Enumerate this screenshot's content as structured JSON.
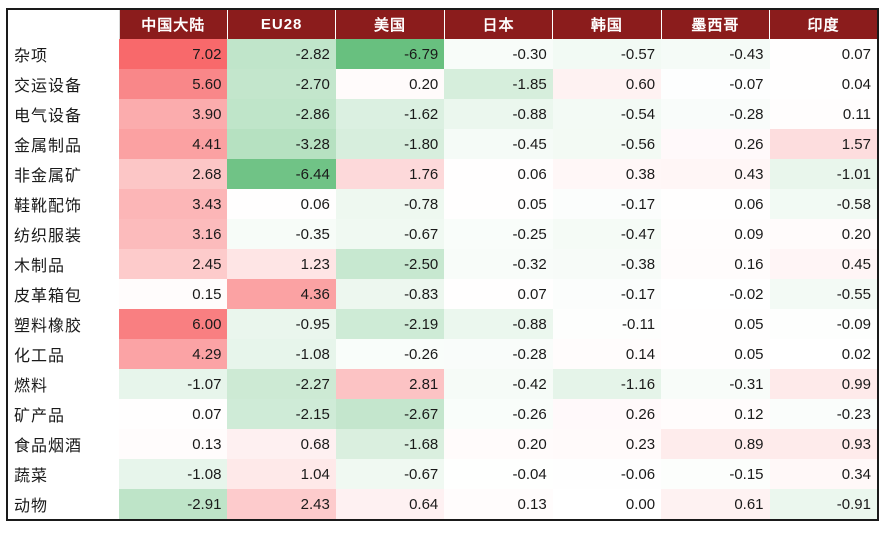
{
  "chart_data": {
    "type": "heatmap",
    "columns": [
      "中国大陆",
      "EU28",
      "美国",
      "日本",
      "韩国",
      "墨西哥",
      "印度"
    ],
    "rows": [
      "杂项",
      "交运设备",
      "电气设备",
      "金属制品",
      "非金属矿",
      "鞋靴配饰",
      "纺织服装",
      "木制品",
      "皮革箱包",
      "塑料橡胶",
      "化工品",
      "燃料",
      "矿产品",
      "食品烟酒",
      "蔬菜",
      "动物"
    ],
    "values": [
      [
        7.02,
        -2.82,
        -6.79,
        -0.3,
        -0.57,
        -0.43,
        0.07
      ],
      [
        5.6,
        -2.7,
        0.2,
        -1.85,
        0.6,
        -0.07,
        0.04
      ],
      [
        3.9,
        -2.86,
        -1.62,
        -0.88,
        -0.54,
        -0.28,
        0.11
      ],
      [
        4.41,
        -3.28,
        -1.8,
        -0.45,
        -0.56,
        0.26,
        1.57
      ],
      [
        2.68,
        -6.44,
        1.76,
        0.06,
        0.38,
        0.43,
        -1.01
      ],
      [
        3.43,
        0.06,
        -0.78,
        0.05,
        -0.17,
        0.06,
        -0.58
      ],
      [
        3.16,
        -0.35,
        -0.67,
        -0.25,
        -0.47,
        0.09,
        0.2
      ],
      [
        2.45,
        1.23,
        -2.5,
        -0.32,
        -0.38,
        0.16,
        0.45
      ],
      [
        0.15,
        4.36,
        -0.83,
        0.07,
        -0.17,
        -0.02,
        -0.55
      ],
      [
        6.0,
        -0.95,
        -2.19,
        -0.88,
        -0.11,
        0.05,
        -0.09
      ],
      [
        4.29,
        -1.08,
        -0.26,
        -0.28,
        0.14,
        0.05,
        0.02
      ],
      [
        -1.07,
        -2.27,
        2.81,
        -0.42,
        -1.16,
        -0.31,
        0.99
      ],
      [
        0.07,
        -2.15,
        -2.67,
        -0.26,
        0.26,
        0.12,
        -0.23
      ],
      [
        0.13,
        0.68,
        -1.68,
        0.2,
        0.23,
        0.89,
        0.93
      ],
      [
        -1.08,
        1.04,
        -0.67,
        -0.04,
        -0.06,
        -0.15,
        0.34
      ],
      [
        -2.91,
        2.43,
        0.64,
        0.13,
        0.0,
        0.61,
        -0.91
      ]
    ],
    "color_scale": {
      "negative": "#63be7b",
      "zero": "#ffffff",
      "positive": "#f8696b"
    },
    "header_bg": "#8b1c1c",
    "decimals": 2
  }
}
